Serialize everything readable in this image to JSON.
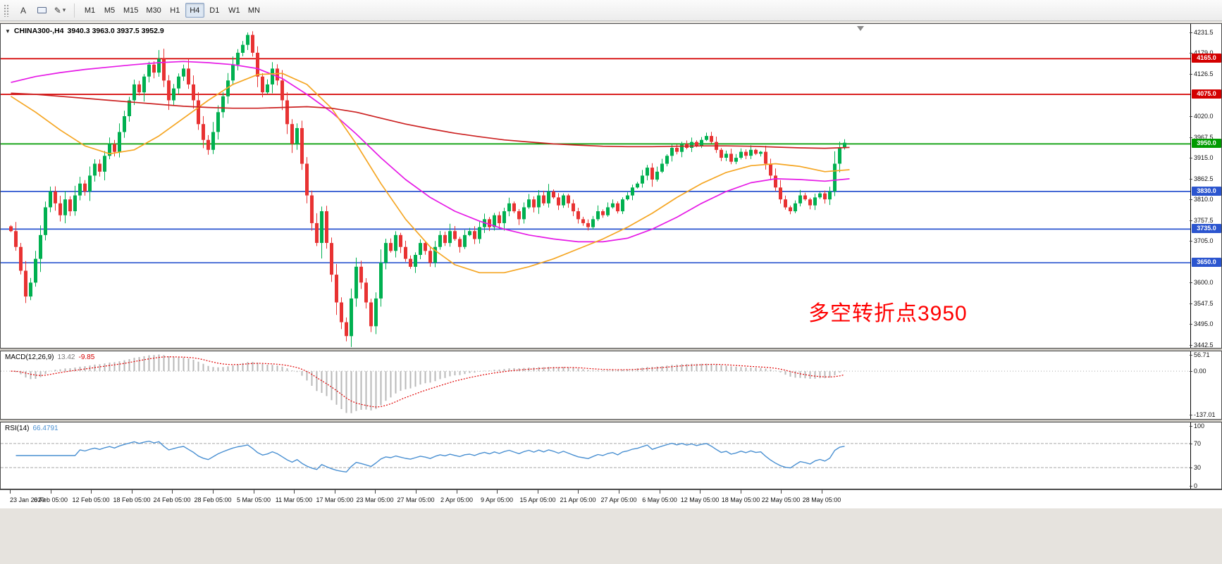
{
  "toolbar": {
    "text_tool_label": "A",
    "draw_tool_icon": "✎",
    "dropdown_caret": "▾",
    "timeframes": [
      "M1",
      "M5",
      "M15",
      "M30",
      "H1",
      "H4",
      "D1",
      "W1",
      "MN"
    ],
    "active_timeframe": "H4"
  },
  "chart": {
    "collapse_icon": "▼",
    "symbol_title": "CHINA300-,H4",
    "ohlc_text": "3940.3 3963.0 3937.5 3952.9",
    "annotation": {
      "text": "多空转折点3950",
      "color": "#ff0000"
    },
    "levels": [
      {
        "label": "4165.0",
        "price": 4165.0,
        "color": "#d40000"
      },
      {
        "label": "4075.0",
        "price": 4075.0,
        "color": "#d40000"
      },
      {
        "label": "3950.0",
        "price": 3950.0,
        "color": "#009b00"
      },
      {
        "label": "3830.0",
        "price": 3830.0,
        "color": "#2b55cf"
      },
      {
        "label": "3735.0",
        "price": 3735.0,
        "color": "#2b55cf"
      },
      {
        "label": "3650.0",
        "price": 3650.0,
        "color": "#2b55cf"
      }
    ],
    "y_ticks": [
      {
        "label": "4231.5",
        "value": 4231.5
      },
      {
        "label": "4179.0",
        "value": 4179.0
      },
      {
        "label": "4126.5",
        "value": 4126.5
      },
      {
        "label": "4020.0",
        "value": 4020.0
      },
      {
        "label": "3967.5",
        "value": 3967.5
      },
      {
        "label": "3915.0",
        "value": 3915.0
      },
      {
        "label": "3862.5",
        "value": 3862.5
      },
      {
        "label": "3810.0",
        "value": 3810.0
      },
      {
        "label": "3757.5",
        "value": 3757.5
      },
      {
        "label": "3705.0",
        "value": 3705.0
      },
      {
        "label": "3600.0",
        "value": 3600.0
      },
      {
        "label": "3547.5",
        "value": 3547.5
      },
      {
        "label": "3495.0",
        "value": 3495.0
      },
      {
        "label": "3442.5",
        "value": 3442.5
      }
    ],
    "x_ticks": [
      "23 Jan 2020",
      "6 Feb 05:00",
      "12 Feb 05:00",
      "18 Feb 05:00",
      "24 Feb 05:00",
      "28 Feb 05:00",
      "5 Mar 05:00",
      "11 Mar 05:00",
      "17 Mar 05:00",
      "23 Mar 05:00",
      "27 Mar 05:00",
      "2 Apr 05:00",
      "9 Apr 05:00",
      "15 Apr 05:00",
      "21 Apr 05:00",
      "27 Apr 05:00",
      "6 May 05:00",
      "12 May 05:00",
      "18 May 05:00",
      "22 May 05:00",
      "28 May 05:00"
    ]
  },
  "chart_data": {
    "type": "candlestick",
    "title": "CHINA300-,H4",
    "timeframe": "H4",
    "last_ohlc": {
      "open": 3940.3,
      "high": 3963.0,
      "low": 3937.5,
      "close": 3952.9
    },
    "up_color": "#00b050",
    "down_color": "#e83232",
    "price_range": {
      "top": 4252.7,
      "bottom": 3435.4
    },
    "horizontal_levels": [
      4165.0,
      4075.0,
      3950.0,
      3830.0,
      3735.0,
      3650.0
    ],
    "closes": [
      3730,
      3690,
      3630,
      3565,
      3600,
      3660,
      3720,
      3790,
      3830,
      3800,
      3770,
      3810,
      3780,
      3820,
      3850,
      3830,
      3870,
      3900,
      3880,
      3920,
      3950,
      3930,
      3980,
      4020,
      4060,
      4100,
      4080,
      4120,
      4150,
      4130,
      4165,
      4110,
      4060,
      4090,
      4120,
      4140,
      4100,
      4060,
      4000,
      3960,
      3935,
      3980,
      4030,
      4070,
      4110,
      4150,
      4180,
      4200,
      4225,
      4180,
      4120,
      4080,
      4100,
      4140,
      4110,
      4060,
      4000,
      3950,
      3990,
      3900,
      3820,
      3750,
      3700,
      3780,
      3700,
      3620,
      3550,
      3500,
      3465,
      3560,
      3640,
      3600,
      3550,
      3490,
      3560,
      3650,
      3700,
      3680,
      3720,
      3690,
      3660,
      3640,
      3670,
      3700,
      3680,
      3650,
      3690,
      3720,
      3700,
      3730,
      3710,
      3690,
      3720,
      3730,
      3710,
      3740,
      3760,
      3740,
      3770,
      3750,
      3780,
      3800,
      3780,
      3760,
      3790,
      3810,
      3790,
      3820,
      3800,
      3830,
      3815,
      3795,
      3820,
      3800,
      3780,
      3760,
      3750,
      3740,
      3760,
      3780,
      3770,
      3790,
      3800,
      3780,
      3810,
      3820,
      3840,
      3850,
      3870,
      3890,
      3860,
      3880,
      3900,
      3920,
      3940,
      3930,
      3950,
      3940,
      3955,
      3945,
      3960,
      3970,
      3955,
      3935,
      3915,
      3925,
      3905,
      3915,
      3930,
      3920,
      3935,
      3925,
      3930,
      3900,
      3870,
      3840,
      3810,
      3790,
      3780,
      3800,
      3820,
      3810,
      3795,
      3815,
      3825,
      3810,
      3830,
      3900,
      3940,
      3952.9
    ],
    "moving_averages": [
      {
        "name": "ma-fast-magenta",
        "color": "#e61ae6",
        "step": 5,
        "values": [
          4105,
          4120,
          4130,
          4138,
          4144,
          4150,
          4155,
          4158,
          4155,
          4150,
          4140,
          4115,
          4075,
          4030,
          3975,
          3915,
          3860,
          3815,
          3780,
          3755,
          3735,
          3720,
          3710,
          3703,
          3703,
          3712,
          3735,
          3765,
          3800,
          3830,
          3852,
          3862,
          3860,
          3856,
          3862
        ]
      },
      {
        "name": "ma-mid-orange",
        "color": "#f5a623",
        "step": 5,
        "values": [
          4070,
          4030,
          3985,
          3945,
          3925,
          3935,
          3970,
          4015,
          4060,
          4100,
          4125,
          4128,
          4100,
          4040,
          3950,
          3850,
          3760,
          3690,
          3645,
          3625,
          3625,
          3640,
          3660,
          3685,
          3710,
          3740,
          3775,
          3815,
          3850,
          3878,
          3895,
          3900,
          3893,
          3880,
          3885
        ]
      },
      {
        "name": "ma-slow-red",
        "color": "#cc2222",
        "step": 5,
        "values": [
          4078,
          4075,
          4070,
          4065,
          4060,
          4055,
          4050,
          4045,
          4042,
          4040,
          4040,
          4042,
          4044,
          4040,
          4030,
          4015,
          4000,
          3988,
          3977,
          3968,
          3960,
          3955,
          3950,
          3947,
          3944,
          3943,
          3943,
          3944,
          3945,
          3945,
          3944,
          3942,
          3940,
          3939,
          3941
        ]
      }
    ]
  },
  "macd": {
    "label": "MACD(12,26,9)",
    "value_main": "13.42",
    "value_signal": "-9.85",
    "y_ticks": [
      {
        "label": "56.71",
        "value": 56.71
      },
      {
        "label": "0.00",
        "value": 0
      },
      {
        "label": "-137.01",
        "value": -137.01
      }
    ],
    "range": {
      "top": 62,
      "bottom": -150
    },
    "hist_color": "#b8b8b8",
    "signal_color": "#e00000"
  },
  "rsi": {
    "label": "RSI(14)",
    "value": "66.4791",
    "y_ticks": [
      {
        "label": "100",
        "value": 100
      },
      {
        "label": "70",
        "value": 70
      },
      {
        "label": "30",
        "value": 30
      },
      {
        "label": "0",
        "value": 0
      }
    ],
    "levels": [
      70,
      30
    ],
    "range": {
      "top": 105,
      "bottom": -5
    },
    "line_color": "#4a90d2",
    "level_color": "#a8a8a8"
  }
}
